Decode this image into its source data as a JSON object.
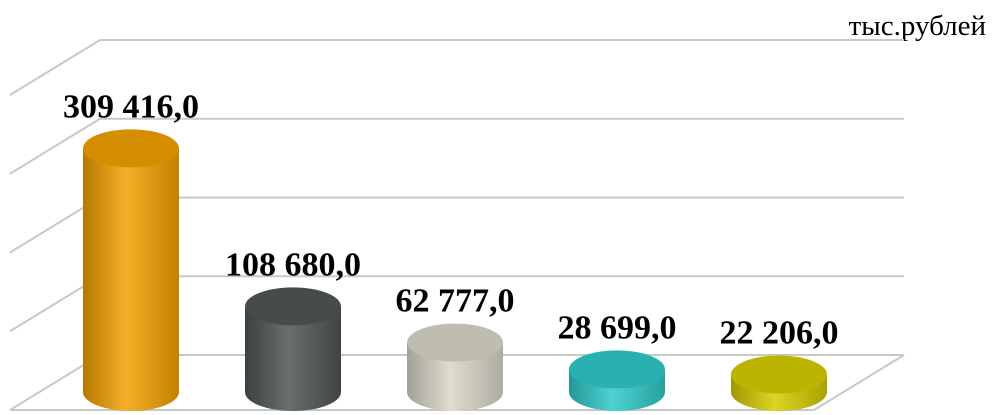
{
  "chart_data": {
    "type": "bar",
    "title": "",
    "unit_label": "тыс.рублей",
    "categories": [
      "",
      "",
      "",
      "",
      ""
    ],
    "values": [
      309416.0,
      108680.0,
      62777.0,
      28699.0,
      22206.0
    ],
    "value_labels": [
      "309 416,0",
      "108 680,0",
      "62 777,0",
      "28 699,0",
      "22 206,0"
    ],
    "ylim": [
      0,
      400000
    ],
    "grid": true,
    "bar_style": "3d-cylinder",
    "colors": [
      "#F2A100",
      "#4E5653",
      "#D9D6C8",
      "#2FC9C9",
      "#D4CC00"
    ]
  }
}
